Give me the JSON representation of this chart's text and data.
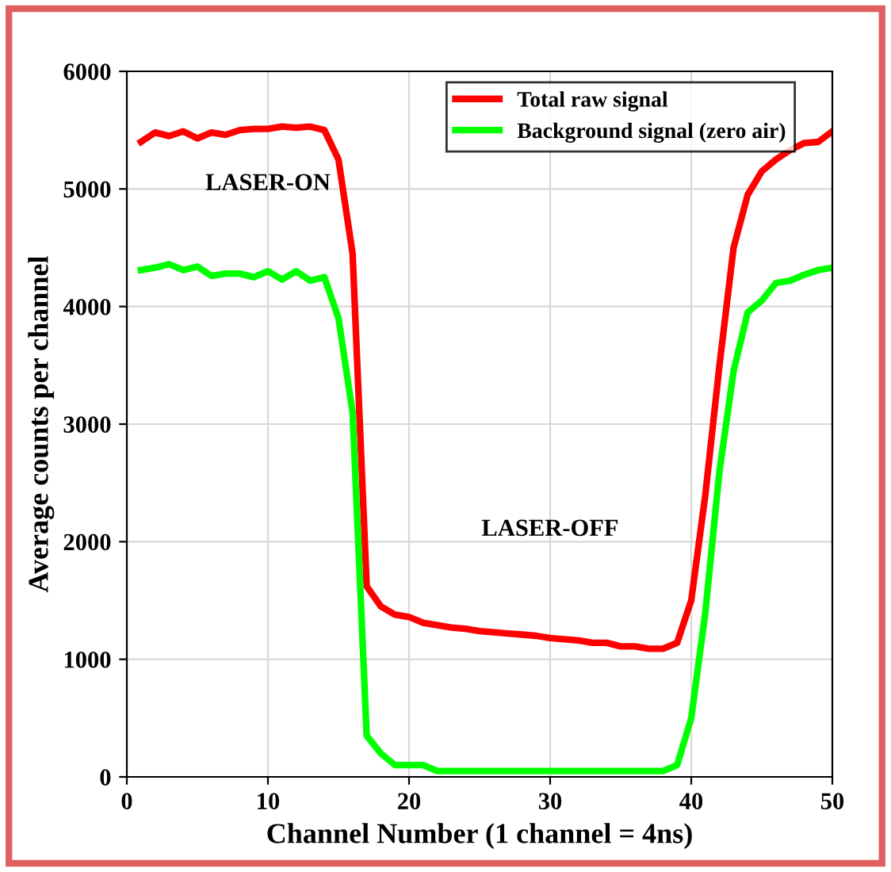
{
  "chart_data": {
    "type": "line",
    "xlabel": "Channel Number (1 channel = 4ns)",
    "ylabel": "Average counts per channel",
    "x": [
      1,
      2,
      3,
      4,
      5,
      6,
      7,
      8,
      9,
      10,
      11,
      12,
      13,
      14,
      15,
      16,
      17,
      18,
      19,
      20,
      21,
      22,
      23,
      24,
      25,
      26,
      27,
      28,
      29,
      30,
      31,
      32,
      33,
      34,
      35,
      36,
      37,
      38,
      39,
      40,
      41,
      42,
      43,
      44,
      45,
      46,
      47,
      48,
      49,
      50
    ],
    "series": [
      {
        "name": "Total raw signal",
        "color": "#ff0000",
        "values": [
          5400,
          5480,
          5450,
          5490,
          5430,
          5480,
          5460,
          5500,
          5510,
          5510,
          5530,
          5520,
          5530,
          5500,
          5250,
          4450,
          1620,
          1450,
          1380,
          1360,
          1310,
          1290,
          1270,
          1260,
          1240,
          1230,
          1220,
          1210,
          1200,
          1180,
          1170,
          1160,
          1140,
          1140,
          1110,
          1110,
          1090,
          1090,
          1140,
          1500,
          2400,
          3500,
          4500,
          4950,
          5150,
          5250,
          5330,
          5390,
          5400,
          5490
        ]
      },
      {
        "name": "Background signal (zero air)",
        "color": "#00ff00",
        "values": [
          4310,
          4330,
          4360,
          4310,
          4340,
          4260,
          4280,
          4280,
          4250,
          4300,
          4230,
          4300,
          4220,
          4250,
          3900,
          3100,
          350,
          200,
          100,
          100,
          100,
          50,
          50,
          50,
          50,
          50,
          50,
          50,
          50,
          50,
          50,
          50,
          50,
          50,
          50,
          50,
          50,
          50,
          100,
          500,
          1400,
          2600,
          3450,
          3950,
          4050,
          4200,
          4220,
          4270,
          4310,
          4330
        ]
      }
    ],
    "xlim": [
      0,
      50
    ],
    "xticks": [
      0,
      10,
      20,
      30,
      40,
      50
    ],
    "ylim": [
      0,
      6000
    ],
    "yticks": [
      0,
      1000,
      2000,
      3000,
      4000,
      5000,
      6000
    ],
    "grid": true,
    "legend": "top",
    "marker": "none",
    "line_style": "solid",
    "annotations": [
      "LASER-ON",
      "LASER-OFF"
    ]
  }
}
